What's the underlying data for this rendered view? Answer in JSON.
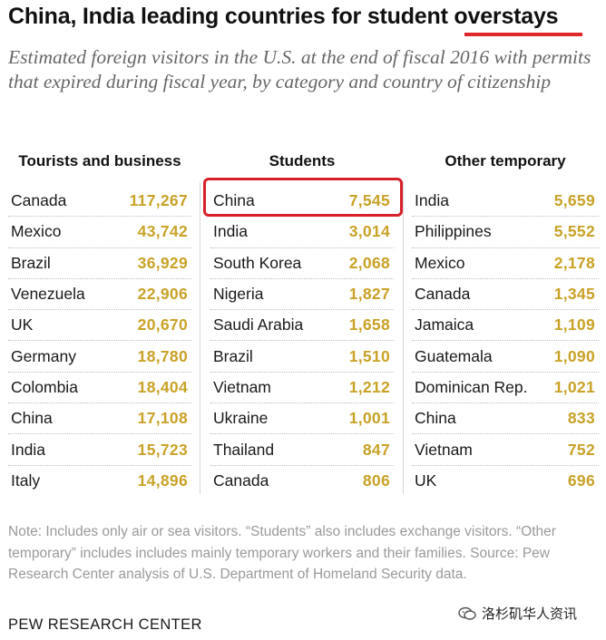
{
  "title": "China, India leading countries for student overstays",
  "subtitle": "Estimated foreign visitors in the U.S. at the end of fiscal 2016 with permits that expired during fiscal year, by category and country of citizenship",
  "colors": {
    "highlight": "#d8202a",
    "value": "#c9a227",
    "accent_underline": "#e0282c"
  },
  "columns": [
    {
      "header": "Tourists and business",
      "rows": [
        {
          "country": "Canada",
          "value": "117,267"
        },
        {
          "country": "Mexico",
          "value": "43,742"
        },
        {
          "country": "Brazil",
          "value": "36,929"
        },
        {
          "country": "Venezuela",
          "value": "22,906"
        },
        {
          "country": "UK",
          "value": "20,670"
        },
        {
          "country": "Germany",
          "value": "18,780"
        },
        {
          "country": "Colombia",
          "value": "18,404"
        },
        {
          "country": "China",
          "value": "17,108"
        },
        {
          "country": "India",
          "value": "15,723"
        },
        {
          "country": "Italy",
          "value": "14,896"
        }
      ]
    },
    {
      "header": "Students",
      "rows": [
        {
          "country": "China",
          "value": "7,545"
        },
        {
          "country": "India",
          "value": "3,014"
        },
        {
          "country": "South Korea",
          "value": "2,068"
        },
        {
          "country": "Nigeria",
          "value": "1,827"
        },
        {
          "country": "Saudi Arabia",
          "value": "1,658"
        },
        {
          "country": "Brazil",
          "value": "1,510"
        },
        {
          "country": "Vietnam",
          "value": "1,212"
        },
        {
          "country": "Ukraine",
          "value": "1,001"
        },
        {
          "country": "Thailand",
          "value": "847"
        },
        {
          "country": "Canada",
          "value": "806"
        }
      ]
    },
    {
      "header": "Other temporary",
      "rows": [
        {
          "country": "India",
          "value": "5,659"
        },
        {
          "country": "Philippines",
          "value": "5,552"
        },
        {
          "country": "Mexico",
          "value": "2,178"
        },
        {
          "country": "Canada",
          "value": "1,345"
        },
        {
          "country": "Jamaica",
          "value": "1,109"
        },
        {
          "country": "Guatemala",
          "value": "1,090"
        },
        {
          "country": "Dominican Rep.",
          "value": "1,021"
        },
        {
          "country": "China",
          "value": "833"
        },
        {
          "country": "Vietnam",
          "value": "752"
        },
        {
          "country": "UK",
          "value": "696"
        }
      ]
    }
  ],
  "note": "Note: Includes only air or sea visitors. “Students” also includes exchange visitors. “Other temporary” includes includes mainly temporary workers and their families. Source: Pew Research Center analysis of U.S. Department of Homeland Security data.",
  "brand": "PEW RESEARCH CENTER",
  "watermark": {
    "icon": "wechat-icon",
    "text": "洛杉矶华人资讯"
  }
}
